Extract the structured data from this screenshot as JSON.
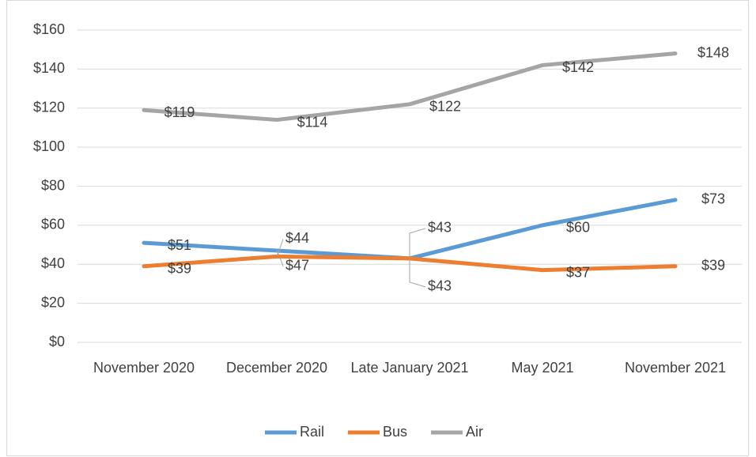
{
  "chart_data": {
    "type": "line",
    "categories": [
      "November 2020",
      "December 2020",
      "Late January 2021",
      "May 2021",
      "November 2021"
    ],
    "series": [
      {
        "name": "Rail",
        "color": "#5b9bd5",
        "values": [
          51,
          47,
          43,
          60,
          73
        ],
        "value_labels": [
          "$51",
          "$47",
          "$43",
          "$60",
          "$73"
        ]
      },
      {
        "name": "Bus",
        "color": "#ed7d31",
        "values": [
          39,
          44,
          43,
          37,
          39
        ],
        "value_labels": [
          "$39",
          "$44",
          "$43",
          "$37",
          "$39"
        ]
      },
      {
        "name": "Air",
        "color": "#a5a5a5",
        "values": [
          119,
          114,
          122,
          142,
          148
        ],
        "value_labels": [
          "$119",
          "$114",
          "$122",
          "$142",
          "$148"
        ]
      }
    ],
    "ylim": [
      0,
      160
    ],
    "yticks": [
      {
        "value": 0,
        "label": "$0"
      },
      {
        "value": 20,
        "label": "$20"
      },
      {
        "value": 40,
        "label": "$40"
      },
      {
        "value": 60,
        "label": "$60"
      },
      {
        "value": 80,
        "label": "$80"
      },
      {
        "value": 100,
        "label": "$100"
      },
      {
        "value": 120,
        "label": "$120"
      },
      {
        "value": 140,
        "label": "$140"
      },
      {
        "value": 160,
        "label": "$160"
      }
    ],
    "grid": true,
    "legend": "bottom"
  }
}
